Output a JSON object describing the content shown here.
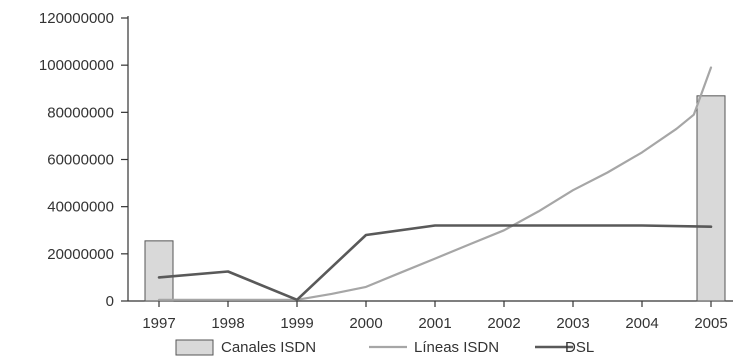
{
  "chart_data": {
    "type": "bar",
    "title": "",
    "xlabel": "",
    "ylabel": "",
    "categories": [
      "1997",
      "1998",
      "1999",
      "2000",
      "2001",
      "2002",
      "2003",
      "2004",
      "2005"
    ],
    "ylim": [
      0,
      120000000
    ],
    "yticks": [
      0,
      20000000,
      40000000,
      60000000,
      80000000,
      100000000,
      120000000
    ],
    "ytick_labels": [
      "0",
      "20000000",
      "40000000",
      "60000000",
      "80000000",
      "100000000",
      "120000000"
    ],
    "grid": false,
    "legend_position": "bottom",
    "series": [
      {
        "name": "Canales ISDN",
        "type": "bar",
        "color": "#d9d9d9",
        "values": [
          25500000,
          null,
          null,
          null,
          null,
          null,
          null,
          null,
          87000000
        ]
      },
      {
        "name": "Líneas ISDN",
        "type": "line",
        "color": "#a6a6a6",
        "values": [
          500000,
          500000,
          500000,
          6000000,
          18000000,
          30000000,
          47000000,
          63000000,
          99000000
        ],
        "curve_points": [
          [
            1999,
            500000
          ],
          [
            1999.5,
            3000000
          ],
          [
            2000,
            6000000
          ],
          [
            2000.5,
            12000000
          ],
          [
            2001,
            18000000
          ],
          [
            2001.5,
            24000000
          ],
          [
            2002,
            30000000
          ],
          [
            2002.5,
            38000000
          ],
          [
            2003,
            47000000
          ],
          [
            2003.5,
            54500000
          ],
          [
            2004,
            63000000
          ],
          [
            2004.5,
            73000000
          ],
          [
            2004.75,
            79000000
          ],
          [
            2005,
            99000000
          ]
        ]
      },
      {
        "name": "DSL",
        "type": "line",
        "color": "#595959",
        "values": [
          10000000,
          12500000,
          500000,
          28000000,
          32000000,
          32000000,
          32000000,
          32000000,
          31500000
        ]
      }
    ]
  }
}
